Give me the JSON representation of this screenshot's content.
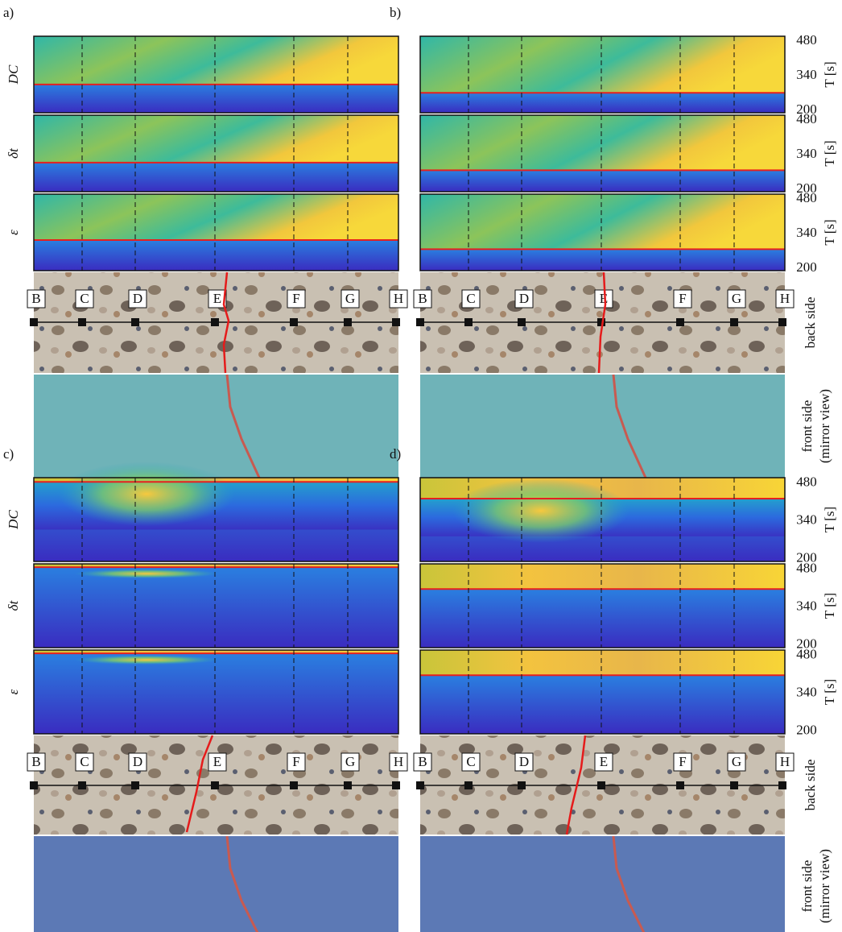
{
  "panels": [
    {
      "label": "a)"
    },
    {
      "label": "b)"
    },
    {
      "label": "c)"
    },
    {
      "label": "d)"
    }
  ],
  "rows": [
    "DC",
    "δt",
    "ε"
  ],
  "points": [
    "B",
    "C",
    "D",
    "E",
    "F",
    "G",
    "H"
  ],
  "ylim": [
    190,
    500
  ],
  "yticks": [
    480,
    340,
    200
  ],
  "yaxis_label": "T [s]",
  "back_label": "back side",
  "front_label": [
    "front side",
    "(mirror view)"
  ]
}
